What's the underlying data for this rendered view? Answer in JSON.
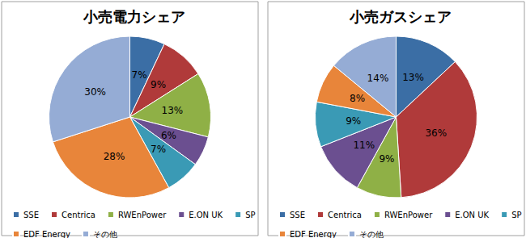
{
  "chart_data": [
    {
      "type": "pie",
      "title": "小売電力シェア",
      "categories": [
        "SSE",
        "Centrica",
        "RWEnPower",
        "E.ON UK",
        "SP",
        "EDF Energy",
        "その他"
      ],
      "values": [
        7,
        9,
        13,
        6,
        7,
        28,
        30
      ],
      "value_labels": [
        "7%",
        "9%",
        "13%",
        "6%",
        "7%",
        "28%",
        "30%"
      ],
      "colors": [
        "#3b6ea5",
        "#b03a3a",
        "#8fb046",
        "#6b4f90",
        "#3a9ab5",
        "#e8853a",
        "#95acd5"
      ],
      "data_labels": true,
      "legend": "bottom"
    },
    {
      "type": "pie",
      "title": "小売ガスシェア",
      "categories": [
        "SSE",
        "Centrica",
        "RWEnPower",
        "E.ON UK",
        "SP",
        "EDF Energy",
        "その他"
      ],
      "values": [
        13,
        36,
        9,
        11,
        9,
        8,
        14
      ],
      "value_labels": [
        "13%",
        "36%",
        "9%",
        "11%",
        "9%",
        "8%",
        "14%"
      ],
      "colors": [
        "#3b6ea5",
        "#b03a3a",
        "#8fb046",
        "#6b4f90",
        "#3a9ab5",
        "#e8853a",
        "#95acd5"
      ],
      "data_labels": true,
      "legend": "bottom"
    }
  ]
}
